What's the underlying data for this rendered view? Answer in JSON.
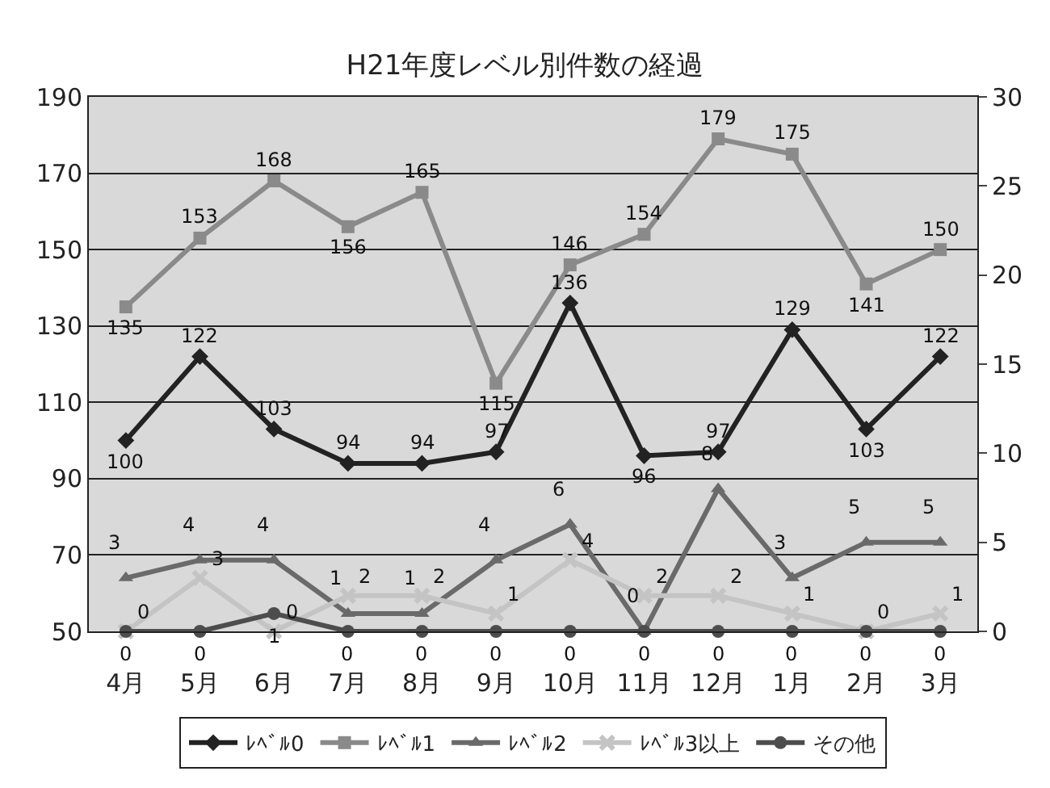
{
  "chart_data": {
    "type": "line",
    "title": "H21年度レベル別件数の経過",
    "categories": [
      "4月",
      "5月",
      "6月",
      "7月",
      "8月",
      "9月",
      "10月",
      "11月",
      "12月",
      "1月",
      "2月",
      "3月"
    ],
    "series": [
      {
        "name": "ﾚﾍﾞﾙ0",
        "color": "#222222",
        "marker": "diamond",
        "values": [
          100,
          122,
          103,
          94,
          94,
          97,
          136,
          96,
          97,
          129,
          103,
          122
        ]
      },
      {
        "name": "ﾚﾍﾞﾙ1",
        "color": "#8a8a8a",
        "marker": "square",
        "values": [
          135,
          153,
          168,
          156,
          165,
          115,
          146,
          154,
          179,
          175,
          141,
          150
        ]
      },
      {
        "name": "ﾚﾍﾞﾙ2",
        "color": "#6a6a6a",
        "marker": "triangle",
        "axis": "y2",
        "values": [
          3,
          4,
          4,
          1,
          1,
          4,
          6,
          0,
          8,
          3,
          5,
          5
        ]
      },
      {
        "name": "ﾚﾍﾞﾙ3以上",
        "color": "#c4c4c4",
        "marker": "cross",
        "axis": "y2",
        "values": [
          0,
          3,
          0,
          2,
          2,
          1,
          4,
          2,
          2,
          1,
          0,
          1
        ]
      },
      {
        "name": "その他",
        "color": "#4d4d4d",
        "marker": "circle",
        "axis": "y2",
        "values": [
          0,
          0,
          1,
          0,
          0,
          0,
          0,
          0,
          0,
          0,
          0,
          0
        ]
      }
    ],
    "ylim": [
      50,
      190
    ],
    "yticks": [
      50,
      70,
      90,
      110,
      130,
      150,
      170,
      190
    ],
    "y2lim": [
      0,
      30
    ],
    "y2ticks": [
      0,
      5,
      10,
      15,
      20,
      25,
      30
    ],
    "grid": "y",
    "legend": "bottom",
    "data_labels": true
  }
}
